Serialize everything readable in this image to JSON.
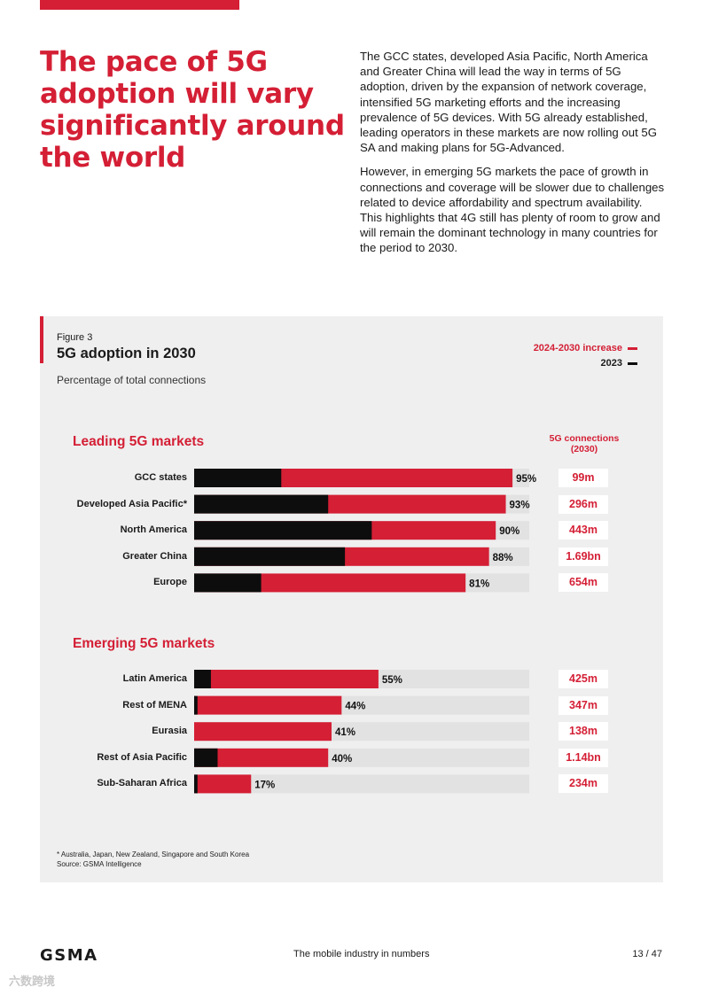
{
  "colors": {
    "accent": "#d41f35",
    "base": "#0d0d0d",
    "track": "#e2e2e2",
    "panel": "#efefef"
  },
  "headline": [
    "The pace of 5G",
    "adoption will vary",
    "significantly around",
    "the world"
  ],
  "intro": [
    "The GCC states, developed Asia Pacific, North America and Greater China will lead the way in terms of 5G adoption, driven by the expansion of network coverage, intensified 5G marketing efforts and the increasing prevalence of 5G devices. With 5G already established, leading operators in these markets are now rolling out 5G SA and making plans for 5G-Advanced.",
    "However, in emerging 5G markets the pace of growth in connections and coverage will be slower due to challenges related to device affordability and spectrum availability. This highlights that 4G still has plenty of room to grow and will remain the dominant technology in many countries for the period to 2030."
  ],
  "figure": {
    "label": "Figure 3",
    "title": "5G adoption in 2030",
    "subtitle": "Percentage of total connections",
    "legend_increase": "2024-2030 increase",
    "legend_2023": "2023",
    "connections_header": "5G connections (2030)",
    "footnote": "* Australia, Japan, New Zealand, Singapore and South Korea",
    "source": "Source: GSMA Intelligence"
  },
  "chart_data": {
    "type": "bar",
    "orientation": "horizontal",
    "stacked": true,
    "title": "5G adoption in 2030",
    "ylabel": "Percentage of total connections",
    "xlim": [
      0,
      100
    ],
    "series": [
      {
        "name": "2023",
        "color": "#0d0d0d"
      },
      {
        "name": "2024-2030 increase",
        "color": "#d41f35"
      }
    ],
    "groups": [
      {
        "name": "Leading 5G markets",
        "categories": [
          {
            "label": "GCC states",
            "base_2023": 26,
            "total_2030": 95,
            "value_label": "95%",
            "connections_2030": "99m"
          },
          {
            "label": "Developed Asia Pacific*",
            "base_2023": 40,
            "total_2030": 93,
            "value_label": "93%",
            "connections_2030": "296m"
          },
          {
            "label": "North America",
            "base_2023": 53,
            "total_2030": 90,
            "value_label": "90%",
            "connections_2030": "443m"
          },
          {
            "label": "Greater China",
            "base_2023": 45,
            "total_2030": 88,
            "value_label": "88%",
            "connections_2030": "1.69bn"
          },
          {
            "label": "Europe",
            "base_2023": 20,
            "total_2030": 81,
            "value_label": "81%",
            "connections_2030": "654m"
          }
        ]
      },
      {
        "name": "Emerging 5G markets",
        "categories": [
          {
            "label": "Latin America",
            "base_2023": 5,
            "total_2030": 55,
            "value_label": "55%",
            "connections_2030": "425m"
          },
          {
            "label": "Rest of MENA",
            "base_2023": 1,
            "total_2030": 44,
            "value_label": "44%",
            "connections_2030": "347m"
          },
          {
            "label": "Eurasia",
            "base_2023": 0,
            "total_2030": 41,
            "value_label": "41%",
            "connections_2030": "138m"
          },
          {
            "label": "Rest of Asia Pacific",
            "base_2023": 7,
            "total_2030": 40,
            "value_label": "40%",
            "connections_2030": "1.14bn"
          },
          {
            "label": "Sub-Saharan Africa",
            "base_2023": 1,
            "total_2030": 17,
            "value_label": "17%",
            "connections_2030": "234m"
          }
        ]
      }
    ]
  },
  "footer": {
    "logo": "GSMA",
    "center": "The mobile industry in numbers",
    "page": "13 / 47"
  },
  "watermark": "六数跨境"
}
